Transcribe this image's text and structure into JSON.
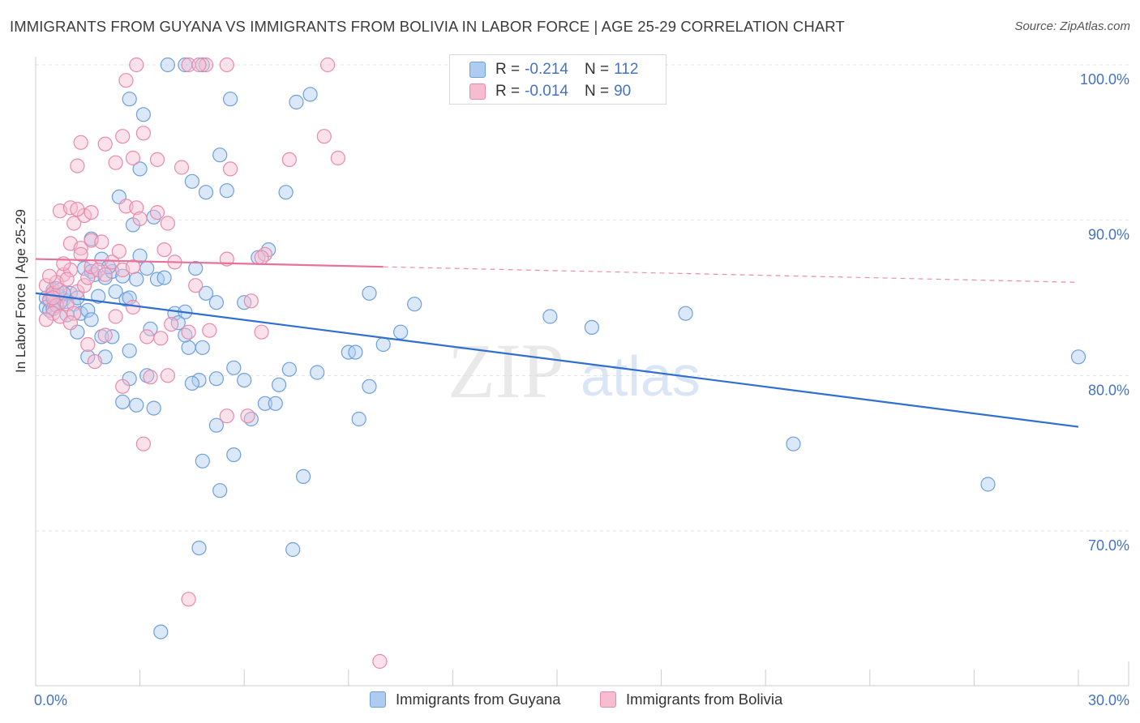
{
  "title": "IMMIGRANTS FROM GUYANA VS IMMIGRANTS FROM BOLIVIA IN LABOR FORCE | AGE 25-29 CORRELATION CHART",
  "source": "Source: ZipAtlas.com",
  "watermark": {
    "zip": "ZIP",
    "atlas": "atlas"
  },
  "legend_top": [
    {
      "r_label": "R =",
      "r_value": "-0.214",
      "n_label": "N =",
      "n_value": "112"
    },
    {
      "r_label": "R =",
      "r_value": "-0.014",
      "n_label": "N =",
      "n_value": "90"
    }
  ],
  "colors": {
    "guyana_fill": "#aecbf0",
    "guyana_stroke": "#6f9fdc",
    "guyana_line": "#2f6fcf",
    "bolivia_fill": "#f7bcd0",
    "bolivia_stroke": "#e98aaa",
    "bolivia_line": "#e8709a",
    "tick_label": "#4472c4",
    "grid": "#e3e3e3"
  },
  "chart_data": {
    "type": "scatter",
    "title": "IMMIGRANTS FROM GUYANA VS IMMIGRANTS FROM BOLIVIA IN LABOR FORCE | AGE 25-29 CORRELATION CHART",
    "xlabel": "",
    "ylabel": "In Labor Force | Age 25-29",
    "xlim": [
      0,
      30
    ],
    "ylim": [
      60,
      101
    ],
    "x_tick_labels": [
      "0.0%",
      "30.0%"
    ],
    "y_ticks": [
      70,
      80,
      90,
      100
    ],
    "y_tick_labels": [
      "70.0%",
      "80.0%",
      "90.0%",
      "100.0%"
    ],
    "series": [
      {
        "name": "Immigrants from Guyana",
        "r": -0.214,
        "n": 112,
        "trend": {
          "x": [
            0,
            30
          ],
          "y": [
            85.3,
            76.7
          ],
          "solid_to": 30
        },
        "points": [
          [
            0.3,
            85.0
          ],
          [
            0.4,
            84.8
          ],
          [
            0.5,
            85.2
          ],
          [
            0.6,
            84.6
          ],
          [
            0.7,
            85.1
          ],
          [
            0.3,
            84.4
          ],
          [
            0.8,
            84.9
          ],
          [
            0.5,
            85.5
          ],
          [
            1.0,
            85.3
          ],
          [
            1.1,
            84.6
          ],
          [
            1.3,
            84.0
          ],
          [
            0.9,
            83.9
          ],
          [
            1.5,
            84.2
          ],
          [
            0.6,
            85.6
          ],
          [
            0.4,
            84.2
          ],
          [
            0.7,
            84.7
          ],
          [
            0.5,
            84.3
          ],
          [
            0.8,
            85.3
          ],
          [
            1.2,
            85.0
          ],
          [
            1.4,
            86.9
          ],
          [
            1.6,
            86.7
          ],
          [
            1.8,
            85.1
          ],
          [
            2.0,
            86.3
          ],
          [
            1.7,
            86.5
          ],
          [
            2.2,
            86.7
          ],
          [
            2.5,
            86.4
          ],
          [
            1.9,
            87.5
          ],
          [
            2.1,
            87.0
          ],
          [
            2.3,
            85.4
          ],
          [
            2.6,
            84.9
          ],
          [
            2.7,
            85.0
          ],
          [
            3.0,
            87.7
          ],
          [
            3.2,
            86.9
          ],
          [
            3.5,
            86.2
          ],
          [
            3.7,
            86.3
          ],
          [
            4.0,
            84.0
          ],
          [
            4.3,
            84.1
          ],
          [
            4.6,
            86.9
          ],
          [
            4.9,
            85.3
          ],
          [
            5.2,
            84.7
          ],
          [
            6.0,
            84.7
          ],
          [
            1.6,
            88.8
          ],
          [
            2.8,
            89.7
          ],
          [
            3.4,
            90.2
          ],
          [
            2.4,
            91.5
          ],
          [
            3.0,
            93.3
          ],
          [
            4.5,
            92.5
          ],
          [
            4.9,
            91.8
          ],
          [
            5.5,
            91.9
          ],
          [
            7.2,
            91.8
          ],
          [
            5.3,
            94.2
          ],
          [
            3.1,
            96.8
          ],
          [
            2.7,
            97.8
          ],
          [
            5.6,
            97.8
          ],
          [
            7.5,
            97.6
          ],
          [
            7.9,
            98.1
          ],
          [
            3.8,
            100.0
          ],
          [
            4.3,
            100.0
          ],
          [
            4.8,
            100.0
          ],
          [
            6.7,
            88.1
          ],
          [
            6.4,
            87.6
          ],
          [
            2.9,
            86.2
          ],
          [
            1.2,
            82.8
          ],
          [
            1.6,
            83.6
          ],
          [
            1.9,
            82.5
          ],
          [
            2.2,
            82.5
          ],
          [
            3.3,
            83.0
          ],
          [
            4.1,
            83.4
          ],
          [
            4.4,
            81.8
          ],
          [
            4.8,
            81.8
          ],
          [
            4.3,
            82.6
          ],
          [
            1.5,
            81.2
          ],
          [
            2.0,
            81.2
          ],
          [
            2.7,
            81.6
          ],
          [
            5.7,
            80.5
          ],
          [
            6.0,
            79.7
          ],
          [
            3.2,
            80.0
          ],
          [
            2.7,
            79.8
          ],
          [
            4.7,
            79.7
          ],
          [
            5.2,
            79.8
          ],
          [
            4.5,
            79.5
          ],
          [
            7.3,
            80.4
          ],
          [
            8.1,
            80.2
          ],
          [
            9.0,
            81.5
          ],
          [
            9.2,
            81.5
          ],
          [
            10.0,
            82.0
          ],
          [
            10.5,
            82.8
          ],
          [
            10.9,
            84.6
          ],
          [
            9.6,
            85.3
          ],
          [
            14.8,
            83.8
          ],
          [
            16.0,
            83.1
          ],
          [
            18.7,
            84.0
          ],
          [
            21.8,
            75.6
          ],
          [
            27.4,
            73.0
          ],
          [
            30.0,
            81.2
          ],
          [
            2.5,
            78.3
          ],
          [
            2.9,
            78.1
          ],
          [
            3.4,
            77.9
          ],
          [
            6.6,
            78.2
          ],
          [
            6.9,
            78.2
          ],
          [
            7.0,
            79.4
          ],
          [
            9.6,
            79.3
          ],
          [
            6.2,
            77.2
          ],
          [
            5.2,
            76.8
          ],
          [
            9.3,
            77.2
          ],
          [
            4.8,
            74.5
          ],
          [
            5.7,
            74.9
          ],
          [
            5.3,
            72.6
          ],
          [
            7.7,
            73.5
          ],
          [
            4.7,
            68.9
          ],
          [
            7.4,
            68.8
          ],
          [
            3.6,
            63.5
          ]
        ]
      },
      {
        "name": "Immigrants from Bolivia",
        "r": -0.014,
        "n": 90,
        "trend": {
          "x": [
            0,
            30
          ],
          "y": [
            87.5,
            86.0
          ],
          "solid_to": 10
        },
        "points": [
          [
            0.3,
            85.8
          ],
          [
            0.5,
            85.3
          ],
          [
            0.4,
            84.9
          ],
          [
            0.6,
            84.5
          ],
          [
            0.8,
            86.5
          ],
          [
            1.0,
            86.8
          ],
          [
            0.7,
            85.5
          ],
          [
            0.9,
            84.6
          ],
          [
            1.2,
            85.4
          ],
          [
            1.4,
            85.8
          ],
          [
            0.5,
            84.0
          ],
          [
            0.3,
            83.6
          ],
          [
            0.7,
            83.8
          ],
          [
            1.1,
            84.0
          ],
          [
            0.6,
            86.0
          ],
          [
            0.4,
            86.4
          ],
          [
            0.8,
            87.2
          ],
          [
            1.5,
            86.3
          ],
          [
            1.6,
            87.0
          ],
          [
            1.8,
            86.8
          ],
          [
            2.0,
            86.5
          ],
          [
            2.2,
            87.3
          ],
          [
            2.5,
            86.8
          ],
          [
            2.8,
            87.0
          ],
          [
            1.0,
            88.5
          ],
          [
            1.3,
            88.2
          ],
          [
            1.6,
            88.7
          ],
          [
            1.9,
            88.6
          ],
          [
            1.1,
            89.8
          ],
          [
            1.4,
            90.3
          ],
          [
            0.7,
            90.6
          ],
          [
            1.0,
            90.8
          ],
          [
            1.2,
            90.7
          ],
          [
            1.6,
            90.5
          ],
          [
            2.6,
            90.9
          ],
          [
            2.9,
            90.8
          ],
          [
            3.0,
            90.1
          ],
          [
            3.5,
            90.5
          ],
          [
            3.8,
            89.8
          ],
          [
            1.2,
            93.5
          ],
          [
            2.3,
            93.7
          ],
          [
            2.8,
            94.0
          ],
          [
            3.5,
            93.9
          ],
          [
            4.2,
            93.4
          ],
          [
            5.6,
            93.3
          ],
          [
            1.3,
            95.0
          ],
          [
            2.0,
            94.9
          ],
          [
            2.5,
            95.4
          ],
          [
            3.1,
            95.6
          ],
          [
            7.3,
            93.9
          ],
          [
            8.3,
            95.4
          ],
          [
            8.7,
            94.0
          ],
          [
            2.6,
            99.0
          ],
          [
            2.9,
            100.0
          ],
          [
            4.4,
            100.0
          ],
          [
            4.9,
            100.0
          ],
          [
            5.5,
            100.0
          ],
          [
            8.4,
            100.0
          ],
          [
            4.7,
            100.0
          ],
          [
            4.0,
            87.3
          ],
          [
            4.6,
            85.8
          ],
          [
            5.5,
            87.5
          ],
          [
            6.2,
            84.8
          ],
          [
            6.6,
            87.8
          ],
          [
            6.5,
            87.6
          ],
          [
            1.0,
            83.4
          ],
          [
            1.5,
            82.0
          ],
          [
            2.0,
            82.6
          ],
          [
            2.3,
            83.8
          ],
          [
            2.8,
            84.4
          ],
          [
            3.2,
            82.5
          ],
          [
            3.6,
            82.4
          ],
          [
            3.9,
            83.3
          ],
          [
            4.4,
            82.8
          ],
          [
            5.0,
            82.9
          ],
          [
            6.5,
            82.8
          ],
          [
            1.7,
            80.9
          ],
          [
            2.5,
            79.3
          ],
          [
            3.3,
            79.9
          ],
          [
            3.8,
            80.0
          ],
          [
            5.5,
            77.4
          ],
          [
            6.1,
            77.4
          ],
          [
            3.1,
            75.6
          ],
          [
            4.4,
            65.6
          ],
          [
            9.9,
            61.6
          ],
          [
            0.9,
            86.2
          ],
          [
            1.3,
            87.8
          ],
          [
            2.4,
            88.0
          ],
          [
            3.7,
            88.1
          ],
          [
            0.5,
            85.0
          ]
        ]
      }
    ]
  },
  "bottom_legend": [
    "Immigrants from Guyana",
    "Immigrants from Bolivia"
  ]
}
